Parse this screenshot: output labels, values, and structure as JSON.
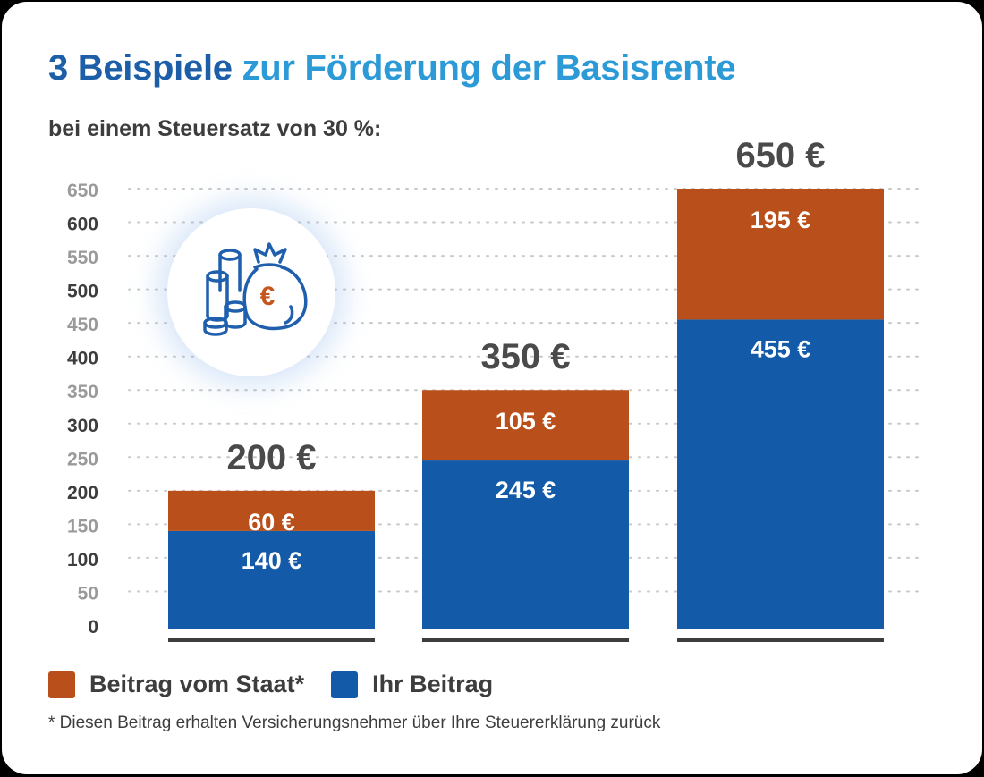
{
  "title_part1": "3 Beispiele",
  "title_part2": "zur Förderung der Basisrente",
  "subtitle": "bei einem Steuersatz von 30 %:",
  "colors": {
    "staat": "#b94f1a",
    "ihr": "#135aa8",
    "axis_label_dark": "#3d3d3d",
    "axis_label_light": "#9a9a9a"
  },
  "icon": "money-bag-coins-euro-icon",
  "legend": [
    {
      "label": "Beitrag vom Staat*",
      "color": "#b94f1a"
    },
    {
      "label": "Ihr Beitrag",
      "color": "#135aa8"
    }
  ],
  "footnote": "* Diesen Beitrag erhalten Versicherungsnehmer über Ihre Steuererklärung zurück",
  "chart_data": {
    "type": "bar",
    "stacked": true,
    "categories": [
      "",
      "",
      ""
    ],
    "series": [
      {
        "name": "Ihr Beitrag",
        "values": [
          140,
          245,
          455
        ],
        "labels": [
          "140 €",
          "245 €",
          "455 €"
        ]
      },
      {
        "name": "Beitrag vom Staat*",
        "values": [
          60,
          105,
          195
        ],
        "labels": [
          "60 €",
          "105 €",
          "195 €"
        ]
      }
    ],
    "totals": [
      "200 €",
      "350 €",
      "650 €"
    ],
    "ylim": [
      0,
      650
    ],
    "yticks": [
      0,
      50,
      100,
      150,
      200,
      250,
      300,
      350,
      400,
      450,
      500,
      550,
      600,
      650
    ],
    "grid": true
  }
}
